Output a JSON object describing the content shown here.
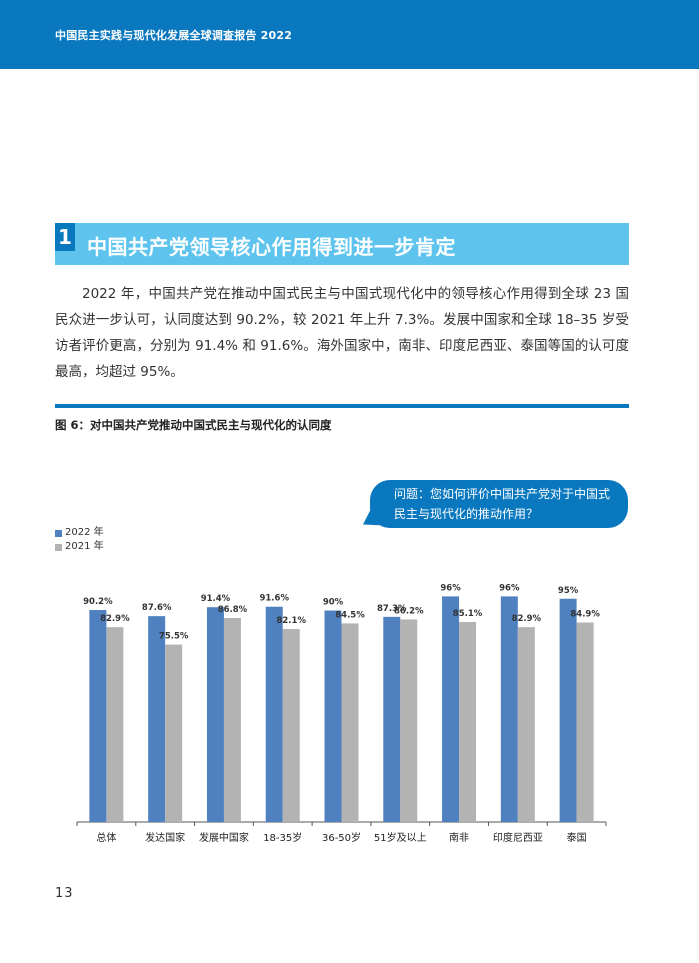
{
  "header": {
    "title": "中国民主实践与现代化发展全球调查报告 2022"
  },
  "section": {
    "number": "1",
    "title": "中国共产党领导核心作用得到进一步肯定"
  },
  "paragraph": "2022 年，中国共产党在推动中国式民主与中国式现代化中的领导核心作用得到全球 23 国民众进一步认可，认同度达到 90.2%，较 2021 年上升 7.3%。发展中国家和全球 18–35 岁受访者评价更高，分别为 91.4% 和 91.6%。海外国家中，南非、印度尼西亚、泰国等国的认可度最高，均超过 95%。",
  "figure": {
    "title": "图 6：对中国共产党推动中国式民主与现代化的认同度",
    "question": "问题：您如何评价中国共产党对于中国式民主与现代化的推动作用？"
  },
  "page_number": "13",
  "colors": {
    "series_2022": "#4f80c0",
    "series_2021": "#b3b3b3",
    "brand": "#0a78bf"
  },
  "chart_data": {
    "type": "bar",
    "categories": [
      "总体",
      "发达国家",
      "发展中国家",
      "18-35岁",
      "36-50岁",
      "51岁及以上",
      "南非",
      "印度尼西亚",
      "泰国"
    ],
    "series": [
      {
        "name": "2022 年",
        "values": [
          90.2,
          87.6,
          91.4,
          91.6,
          90,
          87.3,
          96,
          96,
          95
        ],
        "labels": [
          "90.2%",
          "87.6%",
          "91.4%",
          "91.6%",
          "90%",
          "87.3%",
          "96%",
          "96%",
          "95%"
        ]
      },
      {
        "name": "2021 年",
        "values": [
          82.9,
          75.5,
          86.8,
          82.1,
          84.5,
          86.2,
          85.1,
          82.9,
          84.9
        ],
        "labels": [
          "82.9%",
          "75.5%",
          "86.8%",
          "82.1%",
          "84.5%",
          "86.2%",
          "85.1%",
          "82.9%",
          "84.9%"
        ]
      }
    ],
    "ylim": [
      0,
      100
    ],
    "grid": false,
    "legend_position": "top-left"
  }
}
